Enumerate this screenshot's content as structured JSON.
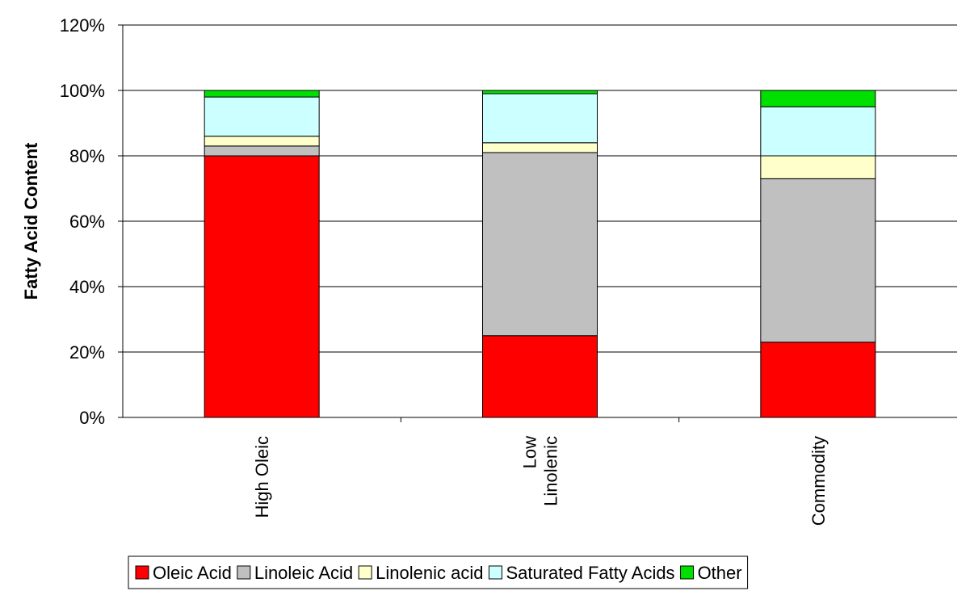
{
  "chart_data": {
    "type": "bar",
    "stacked": true,
    "categories": [
      [
        "High Oleic"
      ],
      [
        "Low",
        "Linolenic"
      ],
      [
        "Commodity"
      ]
    ],
    "series": [
      {
        "name": "Oleic Acid",
        "values": [
          80,
          25,
          23
        ],
        "color": "#ff0000"
      },
      {
        "name": "Linoleic Acid",
        "values": [
          3,
          56,
          50
        ],
        "color": "#c0c0c0"
      },
      {
        "name": "Linolenic acid",
        "values": [
          3,
          3,
          7
        ],
        "color": "#ffffcc"
      },
      {
        "name": "Saturated Fatty Acids",
        "values": [
          12,
          15,
          15
        ],
        "color": "#ccffff"
      },
      {
        "name": "Other",
        "values": [
          2,
          1,
          5
        ],
        "color": "#00e000"
      }
    ],
    "ylabel": "Fatty Acid Content",
    "ylim": [
      0,
      120
    ],
    "yticks": [
      "0%",
      "20%",
      "40%",
      "60%",
      "80%",
      "100%",
      "120%"
    ],
    "grid": true,
    "legend": "bottom"
  }
}
